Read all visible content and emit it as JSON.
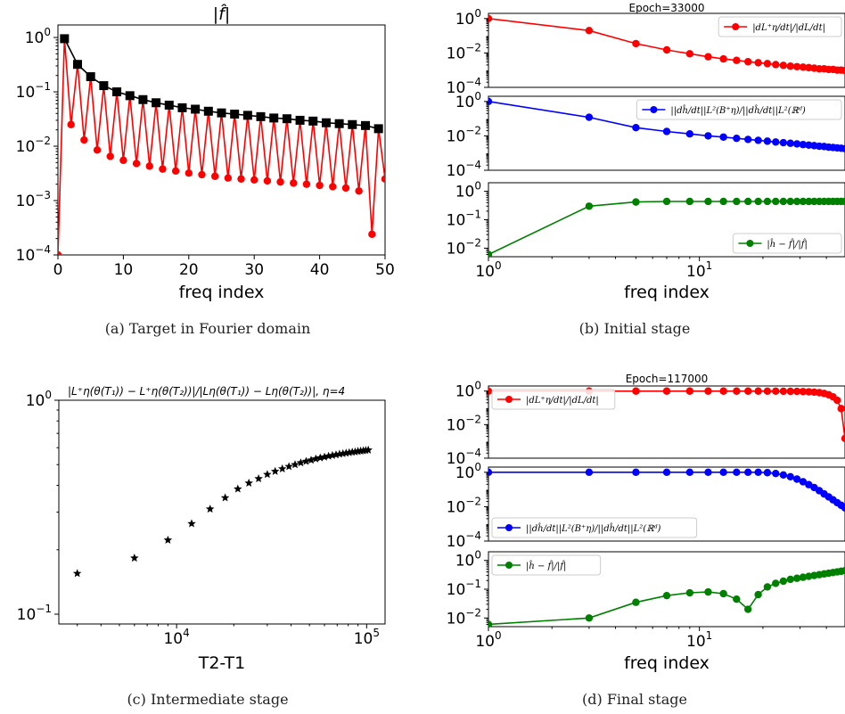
{
  "captions": {
    "a": "(a) Target in Fourier domain",
    "b": "(b) Initial stage",
    "c": "(c) Intermediate stage",
    "d": "(d) Final stage"
  },
  "chart_data": [
    {
      "id": "a",
      "type": "line",
      "title": "|f̂|",
      "xlabel": "freq index",
      "ylabel": "",
      "xlim": [
        0,
        50
      ],
      "ylim": [
        0.0001,
        1.7
      ],
      "yscale": "log",
      "xticks": [
        0,
        10,
        20,
        30,
        40,
        50
      ],
      "yticks": [
        {
          "v": 1,
          "b": "10",
          "e": "0"
        },
        {
          "v": 0.1,
          "b": "10",
          "e": "−1"
        },
        {
          "v": 0.01,
          "b": "10",
          "e": "−2"
        },
        {
          "v": 0.001,
          "b": "10",
          "e": "−3"
        },
        {
          "v": 0.0001,
          "b": "10",
          "e": "−4"
        }
      ],
      "series": [
        {
          "color": "#ff0000",
          "marker": "circle",
          "x": [
            0,
            1,
            2,
            3,
            4,
            5,
            6,
            7,
            8,
            9,
            10,
            11,
            12,
            13,
            14,
            15,
            16,
            17,
            18,
            19,
            20,
            21,
            22,
            23,
            24,
            25,
            26,
            27,
            28,
            29,
            30,
            31,
            32,
            33,
            34,
            35,
            36,
            37,
            38,
            39,
            40,
            41,
            42,
            43,
            44,
            45,
            46,
            47,
            48,
            49,
            50
          ],
          "y": [
            0.0001,
            0.95,
            0.025,
            0.32,
            0.013,
            0.19,
            0.0085,
            0.13,
            0.0065,
            0.1,
            0.0055,
            0.085,
            0.0048,
            0.072,
            0.0043,
            0.063,
            0.0038,
            0.057,
            0.0035,
            0.051,
            0.0032,
            0.048,
            0.003,
            0.044,
            0.0028,
            0.041,
            0.0026,
            0.039,
            0.0025,
            0.037,
            0.0024,
            0.035,
            0.0023,
            0.033,
            0.0022,
            0.032,
            0.0021,
            0.03,
            0.002,
            0.029,
            0.0019,
            0.027,
            0.0018,
            0.026,
            0.0017,
            0.025,
            0.0015,
            0.024,
            0.00024,
            0.021,
            0.0025
          ]
        },
        {
          "color": "#000000",
          "marker": "square",
          "x": [
            1,
            3,
            5,
            7,
            9,
            11,
            13,
            15,
            17,
            19,
            21,
            23,
            25,
            27,
            29,
            31,
            33,
            35,
            37,
            39,
            41,
            43,
            45,
            47,
            49
          ],
          "y": [
            0.95,
            0.32,
            0.19,
            0.13,
            0.1,
            0.085,
            0.072,
            0.063,
            0.057,
            0.051,
            0.048,
            0.044,
            0.041,
            0.039,
            0.037,
            0.035,
            0.033,
            0.032,
            0.03,
            0.029,
            0.027,
            0.026,
            0.025,
            0.024,
            0.021
          ]
        }
      ]
    },
    {
      "id": "b",
      "type": "line",
      "title": "Epoch=33000",
      "xlabel": "freq index",
      "xscale": "log",
      "xlim": [
        1,
        49
      ],
      "subplots": [
        {
          "ylim": [
            0.0001,
            2
          ],
          "yscale": "log",
          "yticks": [
            {
              "v": 1,
              "b": "10",
              "e": "0"
            },
            {
              "v": 0.01,
              "b": "10",
              "e": "−2"
            },
            {
              "v": 0.0001,
              "b": "10",
              "e": "−4"
            }
          ],
          "legend": "|dL⁺η/dt|/|dL/dt|",
          "legend_pos": "top-right",
          "series": [
            {
              "color": "#ff0000",
              "marker": "circle",
              "x": [
                1,
                3,
                5,
                7,
                9,
                11,
                13,
                15,
                17,
                19,
                21,
                23,
                25,
                27,
                29,
                31,
                33,
                35,
                37,
                39,
                41,
                43,
                45,
                47,
                49
              ],
              "y": [
                1.0,
                0.2,
                0.035,
                0.015,
                0.009,
                0.006,
                0.0045,
                0.0037,
                0.0031,
                0.0027,
                0.0024,
                0.0021,
                0.0019,
                0.0017,
                0.0016,
                0.0015,
                0.0014,
                0.0013,
                0.0012,
                0.0012,
                0.0011,
                0.0011,
                0.001,
                0.001,
                0.00095
              ]
            }
          ]
        },
        {
          "ylim": [
            0.0001,
            2
          ],
          "yscale": "log",
          "yticks": [
            {
              "v": 1,
              "b": "10",
              "e": "0"
            },
            {
              "v": 0.01,
              "b": "10",
              "e": "−2"
            },
            {
              "v": 0.0001,
              "b": "10",
              "e": "−4"
            }
          ],
          "legend": "||dĥ/dt||L²(B⁺η)/||dĥ/dt||L²(ℝᵈ)",
          "legend_pos": "top-right",
          "series": [
            {
              "color": "#0000ff",
              "marker": "circle",
              "x": [
                1,
                3,
                5,
                7,
                9,
                11,
                13,
                15,
                17,
                19,
                21,
                23,
                25,
                27,
                29,
                31,
                33,
                35,
                37,
                39,
                41,
                43,
                45,
                47,
                49
              ],
              "y": [
                1.0,
                0.12,
                0.03,
                0.018,
                0.013,
                0.01,
                0.0085,
                0.0072,
                0.0062,
                0.0055,
                0.0049,
                0.0044,
                0.004,
                0.0037,
                0.0034,
                0.0031,
                0.0029,
                0.0027,
                0.0025,
                0.0024,
                0.0022,
                0.0021,
                0.002,
                0.0019,
                0.0018
              ]
            }
          ]
        },
        {
          "ylim": [
            0.005,
            2
          ],
          "yscale": "log",
          "yticks": [
            {
              "v": 1,
              "b": "10",
              "e": "0"
            },
            {
              "v": 0.1,
              "b": "10",
              "e": "−1"
            },
            {
              "v": 0.01,
              "b": "10",
              "e": "−2"
            }
          ],
          "legend": "|ĥ − f̂|/|f̂|",
          "legend_pos": "bottom-right",
          "series": [
            {
              "color": "#008000",
              "marker": "circle",
              "x": [
                1,
                3,
                5,
                7,
                9,
                11,
                13,
                15,
                17,
                19,
                21,
                23,
                25,
                27,
                29,
                31,
                33,
                35,
                37,
                39,
                41,
                43,
                45,
                47,
                49
              ],
              "y": [
                0.006,
                0.3,
                0.42,
                0.44,
                0.44,
                0.44,
                0.44,
                0.44,
                0.44,
                0.44,
                0.44,
                0.44,
                0.44,
                0.44,
                0.44,
                0.44,
                0.44,
                0.44,
                0.44,
                0.44,
                0.44,
                0.44,
                0.44,
                0.44,
                0.44
              ]
            }
          ]
        }
      ],
      "xticks": [
        {
          "v": 1,
          "b": "10",
          "e": "0"
        },
        {
          "v": 10,
          "b": "10",
          "e": "1"
        }
      ]
    },
    {
      "id": "c",
      "type": "scatter",
      "title": "|L⁺η(θ(T₁)) − L⁺η(θ(T₂))|/|Lη(θ(T₁)) − Lη(θ(T₂))|, η=4",
      "xlabel": "T2-T1",
      "xscale": "log",
      "yscale": "log",
      "xlim": [
        2400,
        125000
      ],
      "ylim": [
        0.09,
        1.0
      ],
      "xticks": [
        {
          "v": 10000,
          "b": "10",
          "e": "4"
        },
        {
          "v": 100000,
          "b": "10",
          "e": "5"
        }
      ],
      "yticks": [
        {
          "v": 1,
          "b": "10",
          "e": "0"
        },
        {
          "v": 0.1,
          "b": "10",
          "e": "−1"
        }
      ],
      "series": [
        {
          "color": "#000000",
          "marker": "star",
          "x": [
            3000,
            6000,
            9000,
            12000,
            15000,
            18000,
            21000,
            24000,
            27000,
            30000,
            33000,
            36000,
            39000,
            42000,
            45000,
            48000,
            51000,
            54000,
            57000,
            60000,
            63000,
            66000,
            69000,
            72000,
            75000,
            78000,
            81000,
            84000,
            87000,
            90000,
            93000,
            96000,
            99000,
            102000
          ],
          "y": [
            0.155,
            0.183,
            0.222,
            0.265,
            0.31,
            0.35,
            0.385,
            0.41,
            0.43,
            0.45,
            0.465,
            0.478,
            0.49,
            0.5,
            0.51,
            0.518,
            0.525,
            0.532,
            0.538,
            0.543,
            0.548,
            0.552,
            0.556,
            0.56,
            0.563,
            0.566,
            0.569,
            0.572,
            0.574,
            0.577,
            0.579,
            0.581,
            0.583,
            0.585
          ]
        }
      ]
    },
    {
      "id": "d",
      "type": "line",
      "title": "Epoch=117000",
      "xlabel": "freq index",
      "xscale": "log",
      "xlim": [
        1,
        49
      ],
      "subplots": [
        {
          "ylim": [
            0.0001,
            2
          ],
          "yscale": "log",
          "yticks": [
            {
              "v": 1,
              "b": "10",
              "e": "0"
            },
            {
              "v": 0.01,
              "b": "10",
              "e": "−2"
            },
            {
              "v": 0.0001,
              "b": "10",
              "e": "−4"
            }
          ],
          "legend": "|dL⁺η/dt|/|dL/dt|",
          "legend_pos": "top-left",
          "series": [
            {
              "color": "#ff0000",
              "marker": "circle",
              "x": [
                1,
                3,
                5,
                7,
                9,
                11,
                13,
                15,
                17,
                19,
                21,
                23,
                25,
                27,
                29,
                31,
                33,
                35,
                37,
                39,
                41,
                43,
                45,
                47,
                49
              ],
              "y": [
                0.98,
                0.99,
                0.99,
                0.99,
                0.99,
                0.99,
                0.99,
                0.99,
                0.99,
                0.99,
                0.98,
                0.98,
                0.97,
                0.96,
                0.95,
                0.93,
                0.9,
                0.86,
                0.8,
                0.72,
                0.6,
                0.45,
                0.28,
                0.09,
                0.0015
              ]
            }
          ]
        },
        {
          "ylim": [
            0.0001,
            2
          ],
          "yscale": "log",
          "yticks": [
            {
              "v": 1,
              "b": "10",
              "e": "0"
            },
            {
              "v": 0.01,
              "b": "10",
              "e": "−2"
            },
            {
              "v": 0.0001,
              "b": "10",
              "e": "−4"
            }
          ],
          "legend": "||dĥ/dt||L²(B⁺η)/||dĥ/dt||L²(ℝᵈ)",
          "legend_pos": "bottom-left",
          "series": [
            {
              "color": "#0000ff",
              "marker": "circle",
              "x": [
                1,
                3,
                5,
                7,
                9,
                11,
                13,
                15,
                17,
                19,
                21,
                23,
                25,
                27,
                29,
                31,
                33,
                35,
                37,
                39,
                41,
                43,
                45,
                47,
                49
              ],
              "y": [
                1.0,
                1.0,
                1.0,
                1.0,
                1.0,
                1.0,
                1.0,
                1.0,
                1.0,
                1.0,
                0.95,
                0.85,
                0.7,
                0.55,
                0.4,
                0.28,
                0.19,
                0.13,
                0.085,
                0.055,
                0.037,
                0.025,
                0.017,
                0.012,
                0.0085
              ]
            }
          ]
        },
        {
          "ylim": [
            0.005,
            2
          ],
          "yscale": "log",
          "yticks": [
            {
              "v": 1,
              "b": "10",
              "e": "0"
            },
            {
              "v": 0.1,
              "b": "10",
              "e": "−1"
            },
            {
              "v": 0.01,
              "b": "10",
              "e": "−2"
            }
          ],
          "legend": "|ĥ − f̂|/|f̂|",
          "legend_pos": "top-left",
          "series": [
            {
              "color": "#008000",
              "marker": "circle",
              "x": [
                1,
                3,
                5,
                7,
                9,
                11,
                13,
                15,
                17,
                19,
                21,
                23,
                25,
                27,
                29,
                31,
                33,
                35,
                37,
                39,
                41,
                43,
                45,
                47,
                49
              ],
              "y": [
                0.006,
                0.01,
                0.035,
                0.06,
                0.075,
                0.08,
                0.07,
                0.045,
                0.02,
                0.065,
                0.12,
                0.16,
                0.19,
                0.22,
                0.24,
                0.26,
                0.28,
                0.3,
                0.32,
                0.34,
                0.36,
                0.38,
                0.4,
                0.42,
                0.44
              ]
            }
          ]
        }
      ],
      "xticks": [
        {
          "v": 1,
          "b": "10",
          "e": "0"
        },
        {
          "v": 10,
          "b": "10",
          "e": "1"
        }
      ]
    }
  ]
}
